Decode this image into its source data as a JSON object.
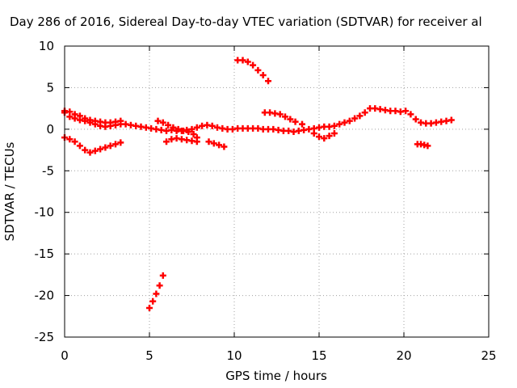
{
  "chart_data": {
    "type": "scatter",
    "title": "Day 286 of 2016, Sidereal Day-to-day VTEC variation (SDTVAR) for receiver al",
    "xlabel": "GPS time / hours",
    "ylabel": "SDTVAR / TECUs",
    "xlim": [
      0,
      25
    ],
    "ylim": [
      -25,
      10
    ],
    "xticks": [
      0,
      5,
      10,
      15,
      20,
      25
    ],
    "yticks": [
      10,
      5,
      0,
      -5,
      -10,
      -15,
      -20,
      -25
    ],
    "grid": true,
    "marker": "plus",
    "color": "#ff0000",
    "series": [
      {
        "name": "main-band",
        "x": [
          0.0,
          0.3,
          0.6,
          0.9,
          1.2,
          1.5,
          1.8,
          2.1,
          2.4,
          2.7,
          3.0,
          3.3,
          3.6,
          3.9,
          4.2,
          4.5,
          4.8,
          5.1,
          5.4,
          5.7,
          6.0,
          6.3,
          6.6,
          6.9,
          7.2,
          7.5,
          7.8,
          8.1,
          8.4,
          8.7,
          9.0,
          9.3,
          9.6,
          9.9,
          10.2,
          10.5,
          10.8,
          11.1,
          11.4,
          11.7,
          12.0,
          12.3,
          12.6,
          12.9,
          13.2,
          13.5,
          13.8,
          14.1,
          14.4,
          14.7,
          15.0,
          15.3,
          15.6,
          15.9,
          16.2,
          16.5,
          16.8,
          17.1,
          17.4,
          17.7,
          18.0,
          18.3,
          18.6,
          18.9,
          19.2,
          19.5,
          19.8,
          20.1,
          20.4,
          20.7,
          21.0,
          21.3,
          21.6,
          21.9,
          22.2,
          22.5,
          22.8
        ],
        "y": [
          2.0,
          1.5,
          1.3,
          1.1,
          1.0,
          0.8,
          0.6,
          0.4,
          0.3,
          0.4,
          0.5,
          0.6,
          0.6,
          0.5,
          0.4,
          0.3,
          0.2,
          0.1,
          0.0,
          -0.1,
          -0.2,
          -0.1,
          -0.2,
          -0.2,
          -0.1,
          0.0,
          0.2,
          0.4,
          0.5,
          0.4,
          0.2,
          0.1,
          0.0,
          0.0,
          0.1,
          0.1,
          0.1,
          0.1,
          0.1,
          0.0,
          0.0,
          0.0,
          -0.1,
          -0.2,
          -0.2,
          -0.3,
          -0.2,
          -0.1,
          0.0,
          0.1,
          0.2,
          0.3,
          0.3,
          0.4,
          0.6,
          0.8,
          1.0,
          1.3,
          1.6,
          2.0,
          2.5,
          2.5,
          2.4,
          2.3,
          2.2,
          2.2,
          2.1,
          2.2,
          1.8,
          1.2,
          0.8,
          0.7,
          0.7,
          0.8,
          0.9,
          1.0,
          1.1
        ]
      },
      {
        "name": "upper-spread",
        "x": [
          0.0,
          0.3,
          0.6,
          0.9,
          1.2,
          1.5,
          1.8,
          2.1,
          2.4,
          2.7,
          3.0,
          3.3
        ],
        "y": [
          2.2,
          2.1,
          1.8,
          1.6,
          1.3,
          1.1,
          1.0,
          0.9,
          0.8,
          0.8,
          0.9,
          1.0
        ]
      },
      {
        "name": "lower-arc-early",
        "x": [
          0.0,
          0.3,
          0.6,
          0.9,
          1.2,
          1.5,
          1.8,
          2.1,
          2.4,
          2.7,
          3.0,
          3.3
        ],
        "y": [
          -1.0,
          -1.2,
          -1.5,
          -2.0,
          -2.5,
          -2.8,
          -2.6,
          -2.4,
          -2.2,
          -2.0,
          -1.8,
          -1.6
        ]
      },
      {
        "name": "steep-drop",
        "x": [
          5.0,
          5.2,
          5.4,
          5.6,
          5.8
        ],
        "y": [
          -21.5,
          -20.7,
          -19.8,
          -18.8,
          -17.6
        ]
      },
      {
        "name": "dip-near-6h",
        "x": [
          5.5,
          5.8,
          6.1,
          6.4,
          6.7,
          7.0,
          7.3,
          7.6,
          7.8
        ],
        "y": [
          1.0,
          0.8,
          0.5,
          0.2,
          0.0,
          -0.2,
          -0.3,
          -0.6,
          -1.0
        ]
      },
      {
        "name": "lower-segment-7h",
        "x": [
          6.0,
          6.3,
          6.6,
          6.9,
          7.2,
          7.5,
          7.8
        ],
        "y": [
          -1.5,
          -1.2,
          -1.1,
          -1.2,
          -1.3,
          -1.4,
          -1.5
        ]
      },
      {
        "name": "short-drop-9h",
        "x": [
          8.5,
          8.8,
          9.1,
          9.4
        ],
        "y": [
          -1.5,
          -1.7,
          -1.9,
          -2.1
        ]
      },
      {
        "name": "high-arc-10-12h",
        "x": [
          10.2,
          10.5,
          10.8,
          11.1,
          11.4,
          11.7,
          12.0
        ],
        "y": [
          8.3,
          8.3,
          8.1,
          7.7,
          7.1,
          6.5,
          5.8
        ]
      },
      {
        "name": "segment-12-14h",
        "x": [
          11.8,
          12.1,
          12.4,
          12.7,
          13.0,
          13.3,
          13.6,
          14.0
        ],
        "y": [
          2.0,
          2.0,
          1.9,
          1.8,
          1.5,
          1.2,
          0.9,
          0.6
        ]
      },
      {
        "name": "segment-15h",
        "x": [
          14.7,
          15.0,
          15.3,
          15.6,
          15.9
        ],
        "y": [
          -0.5,
          -0.9,
          -1.1,
          -0.8,
          -0.5
        ]
      },
      {
        "name": "segment-21h",
        "x": [
          20.8,
          21.0,
          21.2,
          21.4
        ],
        "y": [
          -1.8,
          -1.8,
          -1.9,
          -2.0
        ]
      }
    ]
  }
}
